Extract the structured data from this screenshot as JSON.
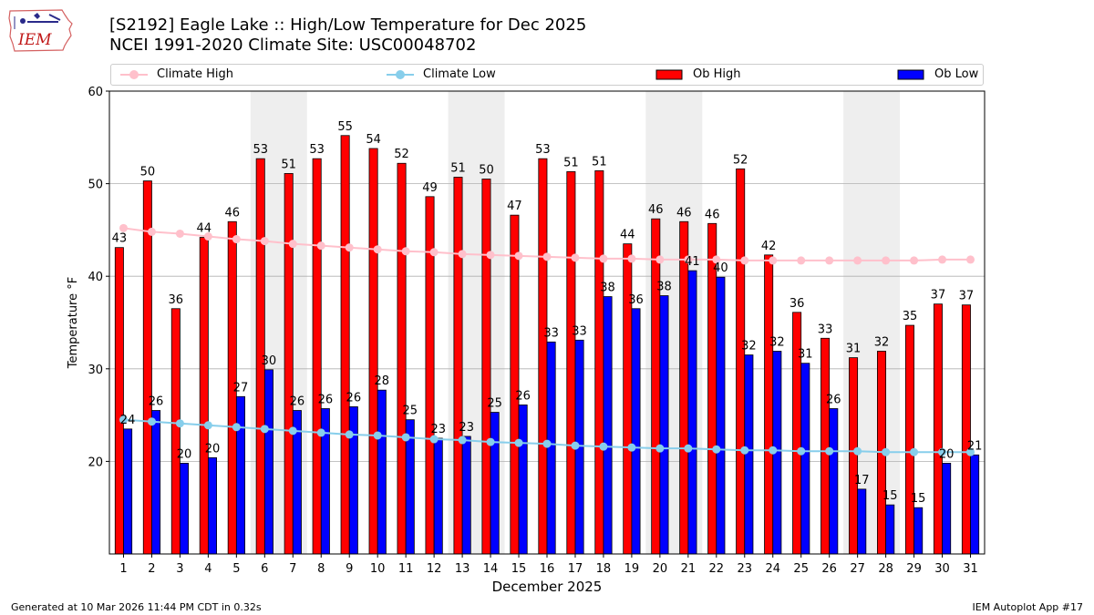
{
  "logo_text": "IEM",
  "title_line1": "[S2192] Eagle Lake :: High/Low Temperature for Dec 2025",
  "title_line2": "NCEI 1991-2020 Climate Site: USC00048702",
  "footer_left": "Generated at 10 Mar 2026 11:44 PM CDT in 0.32s",
  "footer_right": "IEM Autoplot App #17",
  "colors": {
    "ob_high": "#ff0000",
    "ob_low": "#0000ff",
    "climate_high": "#ffc0cb",
    "climate_low": "#87ceeb",
    "weekend_shading": "#eeeeee"
  },
  "chart_data": {
    "type": "bar",
    "xlabel": "December 2025",
    "ylabel": "Temperature °F",
    "ylim": [
      10,
      60
    ],
    "yticks": [
      20,
      30,
      40,
      50,
      60
    ],
    "grid": "horizontal",
    "legend_position": "top",
    "categories": [
      "1",
      "2",
      "3",
      "4",
      "5",
      "6",
      "7",
      "8",
      "9",
      "10",
      "11",
      "12",
      "13",
      "14",
      "15",
      "16",
      "17",
      "18",
      "19",
      "20",
      "21",
      "22",
      "23",
      "24",
      "25",
      "26",
      "27",
      "28",
      "29",
      "30",
      "31"
    ],
    "shaded_days": [
      [
        6,
        7
      ],
      [
        13,
        14
      ],
      [
        20,
        21
      ],
      [
        27,
        28
      ]
    ],
    "legend": [
      "Climate High",
      "Climate Low",
      "Ob High",
      "Ob Low"
    ],
    "ob_high": [
      43,
      50,
      36,
      44,
      46,
      53,
      51,
      53,
      55,
      54,
      52,
      49,
      51,
      50,
      47,
      53,
      51,
      51,
      44,
      46,
      46,
      46,
      52,
      42,
      36,
      33,
      31,
      32,
      35,
      37,
      37
    ],
    "ob_low": [
      24,
      26,
      20,
      20,
      27,
      30,
      26,
      26,
      26,
      28,
      25,
      23,
      23,
      25,
      26,
      33,
      33,
      38,
      36,
      38,
      41,
      40,
      32,
      32,
      31,
      26,
      17,
      15,
      15,
      20,
      21
    ],
    "ob_high_values": [
      43.1,
      50.3,
      36.5,
      44.2,
      45.9,
      52.7,
      51.1,
      52.7,
      55.2,
      53.8,
      52.2,
      48.6,
      50.7,
      50.5,
      46.6,
      52.7,
      51.3,
      51.4,
      43.5,
      46.2,
      45.9,
      45.7,
      51.6,
      42.3,
      36.1,
      33.3,
      31.2,
      31.9,
      34.7,
      37.0,
      36.9
    ],
    "ob_low_values": [
      23.5,
      25.5,
      19.8,
      20.4,
      27.0,
      29.9,
      25.5,
      25.7,
      25.9,
      27.7,
      24.5,
      22.5,
      22.7,
      25.3,
      26.1,
      32.9,
      33.1,
      37.8,
      36.5,
      37.9,
      40.6,
      39.9,
      31.5,
      31.9,
      30.6,
      25.7,
      17.0,
      15.3,
      15.0,
      19.8,
      20.7
    ],
    "climate_high": [
      45.2,
      44.8,
      44.6,
      44.3,
      44.0,
      43.8,
      43.5,
      43.3,
      43.1,
      42.9,
      42.7,
      42.6,
      42.4,
      42.3,
      42.2,
      42.1,
      42.0,
      41.9,
      41.9,
      41.8,
      41.8,
      41.8,
      41.7,
      41.7,
      41.7,
      41.7,
      41.7,
      41.7,
      41.7,
      41.8,
      41.8
    ],
    "climate_low": [
      24.5,
      24.3,
      24.1,
      23.9,
      23.7,
      23.5,
      23.3,
      23.1,
      22.9,
      22.8,
      22.6,
      22.4,
      22.3,
      22.1,
      22.0,
      21.9,
      21.7,
      21.6,
      21.5,
      21.4,
      21.4,
      21.3,
      21.2,
      21.2,
      21.1,
      21.1,
      21.1,
      21.0,
      21.0,
      21.0,
      21.0
    ]
  }
}
